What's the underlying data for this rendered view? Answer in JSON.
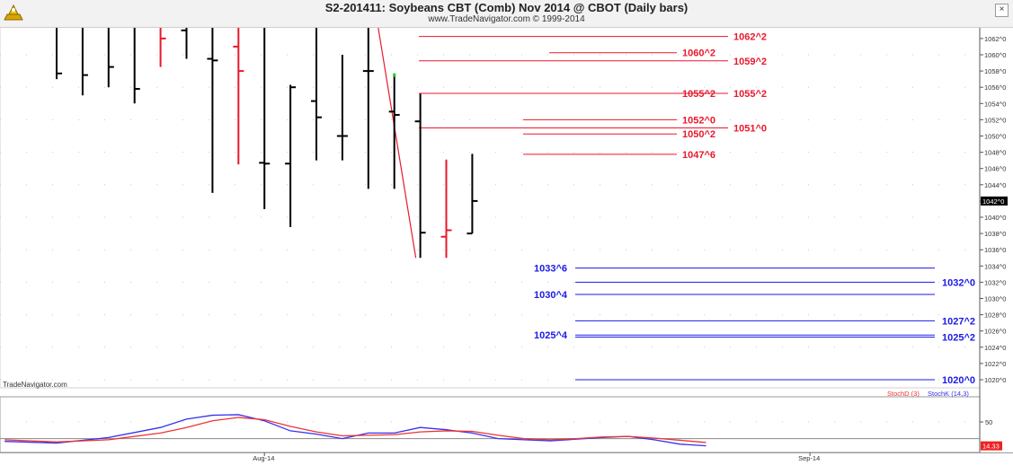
{
  "window": {
    "title": "S2-201411:  Soybeans CBT (Comb) Nov 2014 @ CBOT  (Daily bars)",
    "subtitle": "www.TradeNavigator.com © 1999-2014",
    "close_glyph": "×",
    "watermark": "TradeNavigator.com"
  },
  "colors": {
    "up": "#000000",
    "down": "#e8182c",
    "resistance": "#e8182c",
    "support": "#1a1ae6",
    "stochK": "#3333ee",
    "stochD": "#ee3333",
    "grid": "#c8c8c8",
    "last_label_bg": "#000000"
  },
  "chart_data": [
    {
      "type": "ohlc",
      "title": "Soybeans CBT (Comb) Nov 2014 @ CBOT (Daily bars)",
      "ylim": [
        1018,
        1064
      ],
      "y_ticks": [
        "1020^0",
        "1022^0",
        "1024^0",
        "1026^0",
        "1028^0",
        "1030^0",
        "1032^0",
        "1034^0",
        "1036^0",
        "1038^0",
        "1040^0",
        "1042^0",
        "1044^0",
        "1046^0",
        "1048^0",
        "1050^0",
        "1052^0",
        "1054^0",
        "1056^0",
        "1058^0",
        "1060^0",
        "1062^0"
      ],
      "x_labels": [
        {
          "label": "Aug-14",
          "i": 8
        },
        {
          "label": "Sep-14",
          "i": 29
        }
      ],
      "last_price": "1042^0",
      "bars": [
        {
          "o": 1063.5,
          "h": 1064.0,
          "l": 1057.0,
          "c": 1057.7,
          "color": "up"
        },
        {
          "o": 1063.5,
          "h": 1064.0,
          "l": 1055.0,
          "c": 1057.5,
          "color": "up"
        },
        {
          "o": 1063.5,
          "h": 1064.0,
          "l": 1056.0,
          "c": 1058.5,
          "color": "up"
        },
        {
          "o": 1063.5,
          "h": 1064.0,
          "l": 1054.0,
          "c": 1055.8,
          "color": "up"
        },
        {
          "o": 1063.5,
          "h": 1064.0,
          "l": 1058.5,
          "c": 1062.0,
          "color": "down"
        },
        {
          "o": 1063.0,
          "h": 1064.0,
          "l": 1059.5,
          "c": 1063.5,
          "color": "up"
        },
        {
          "o": 1059.5,
          "h": 1064.0,
          "l": 1043.0,
          "c": 1059.3,
          "color": "up"
        },
        {
          "o": 1061.0,
          "h": 1064.0,
          "l": 1046.5,
          "c": 1058.0,
          "color": "down"
        },
        {
          "o": 1046.7,
          "h": 1064.0,
          "l": 1041.0,
          "c": 1046.6,
          "color": "up"
        },
        {
          "o": 1046.6,
          "h": 1056.3,
          "l": 1038.8,
          "c": 1056.0,
          "color": "up"
        },
        {
          "o": 1054.3,
          "h": 1064.0,
          "l": 1047.0,
          "c": 1052.3,
          "color": "up"
        },
        {
          "o": 1050.0,
          "h": 1060.0,
          "l": 1047.0,
          "c": 1050.0,
          "color": "up"
        },
        {
          "o": 1058.0,
          "h": 1064.0,
          "l": 1043.5,
          "c": 1058.0,
          "color": "up"
        },
        {
          "o": 1053.0,
          "h": 1057.5,
          "l": 1043.5,
          "c": 1052.6,
          "color": "up"
        },
        {
          "o": 1051.8,
          "h": 1055.2,
          "l": 1035.0,
          "c": 1038.1,
          "color": "up"
        },
        {
          "o": 1037.6,
          "h": 1047.1,
          "l": 1035.0,
          "c": 1038.4,
          "color": "down"
        },
        {
          "o": 1038.0,
          "h": 1047.8,
          "l": 1038.0,
          "c": 1042.0,
          "color": "up"
        }
      ],
      "resistance": [
        {
          "label": "1062^2",
          "value": 1062.25
        },
        {
          "label": "1060^2",
          "value": 1060.25
        },
        {
          "label": "1059^2",
          "value": 1059.25
        },
        {
          "label": "1055^2",
          "value": 1055.25
        },
        {
          "label": "1055^2",
          "value": 1055.25
        },
        {
          "label": "1052^0",
          "value": 1052.0
        },
        {
          "label": "1051^0",
          "value": 1051.0
        },
        {
          "label": "1050^2",
          "value": 1050.25
        },
        {
          "label": "1047^6",
          "value": 1047.75
        }
      ],
      "support": [
        {
          "label": "1033^6",
          "value": 1033.75
        },
        {
          "label": "1032^0",
          "value": 1032.0
        },
        {
          "label": "1030^4",
          "value": 1030.5
        },
        {
          "label": "1027^2",
          "value": 1027.25
        },
        {
          "label": "1025^4",
          "value": 1025.5
        },
        {
          "label": "1025^2",
          "value": 1025.25
        },
        {
          "label": "1020^0",
          "value": 1020.0
        }
      ],
      "trendline": {
        "from": {
          "i": 12,
          "price": 1064.0
        },
        "to": {
          "i": 14,
          "price": 1035.0
        }
      }
    },
    {
      "type": "line",
      "legend": [
        "StochD (3)",
        "StochK (14,3)"
      ],
      "ylim": [
        0,
        100
      ],
      "y_ticks": [
        "50"
      ],
      "last_label": "14.33",
      "series": [
        {
          "name": "StochK (14,3)",
          "color": "stochK",
          "points": [
            [
              -2,
              15
            ],
            [
              0,
              12
            ],
            [
              2,
              22
            ],
            [
              4,
              40
            ],
            [
              5,
              55
            ],
            [
              6,
              62
            ],
            [
              7,
              63
            ],
            [
              8,
              52
            ],
            [
              9,
              34
            ],
            [
              10,
              28
            ],
            [
              11,
              20
            ],
            [
              12,
              30
            ],
            [
              13,
              30
            ],
            [
              14,
              40
            ],
            [
              15,
              36
            ],
            [
              16,
              30
            ],
            [
              17,
              20
            ],
            [
              18,
              18
            ],
            [
              19,
              16
            ],
            [
              20,
              19
            ],
            [
              21,
              22
            ],
            [
              22,
              24
            ],
            [
              23,
              18
            ],
            [
              24,
              10
            ],
            [
              25,
              7
            ]
          ]
        },
        {
          "name": "StochD (3)",
          "color": "stochD",
          "points": [
            [
              -2,
              18
            ],
            [
              0,
              14
            ],
            [
              2,
              18
            ],
            [
              4,
              30
            ],
            [
              5,
              40
            ],
            [
              6,
              52
            ],
            [
              7,
              58
            ],
            [
              8,
              54
            ],
            [
              9,
              42
            ],
            [
              10,
              32
            ],
            [
              11,
              25
            ],
            [
              12,
              26
            ],
            [
              13,
              27
            ],
            [
              14,
              32
            ],
            [
              15,
              34
            ],
            [
              16,
              33
            ],
            [
              17,
              26
            ],
            [
              18,
              20
            ],
            [
              19,
              18
            ],
            [
              20,
              20
            ],
            [
              21,
              23
            ],
            [
              22,
              24
            ],
            [
              23,
              21
            ],
            [
              24,
              17
            ],
            [
              25,
              13
            ]
          ]
        }
      ]
    }
  ]
}
